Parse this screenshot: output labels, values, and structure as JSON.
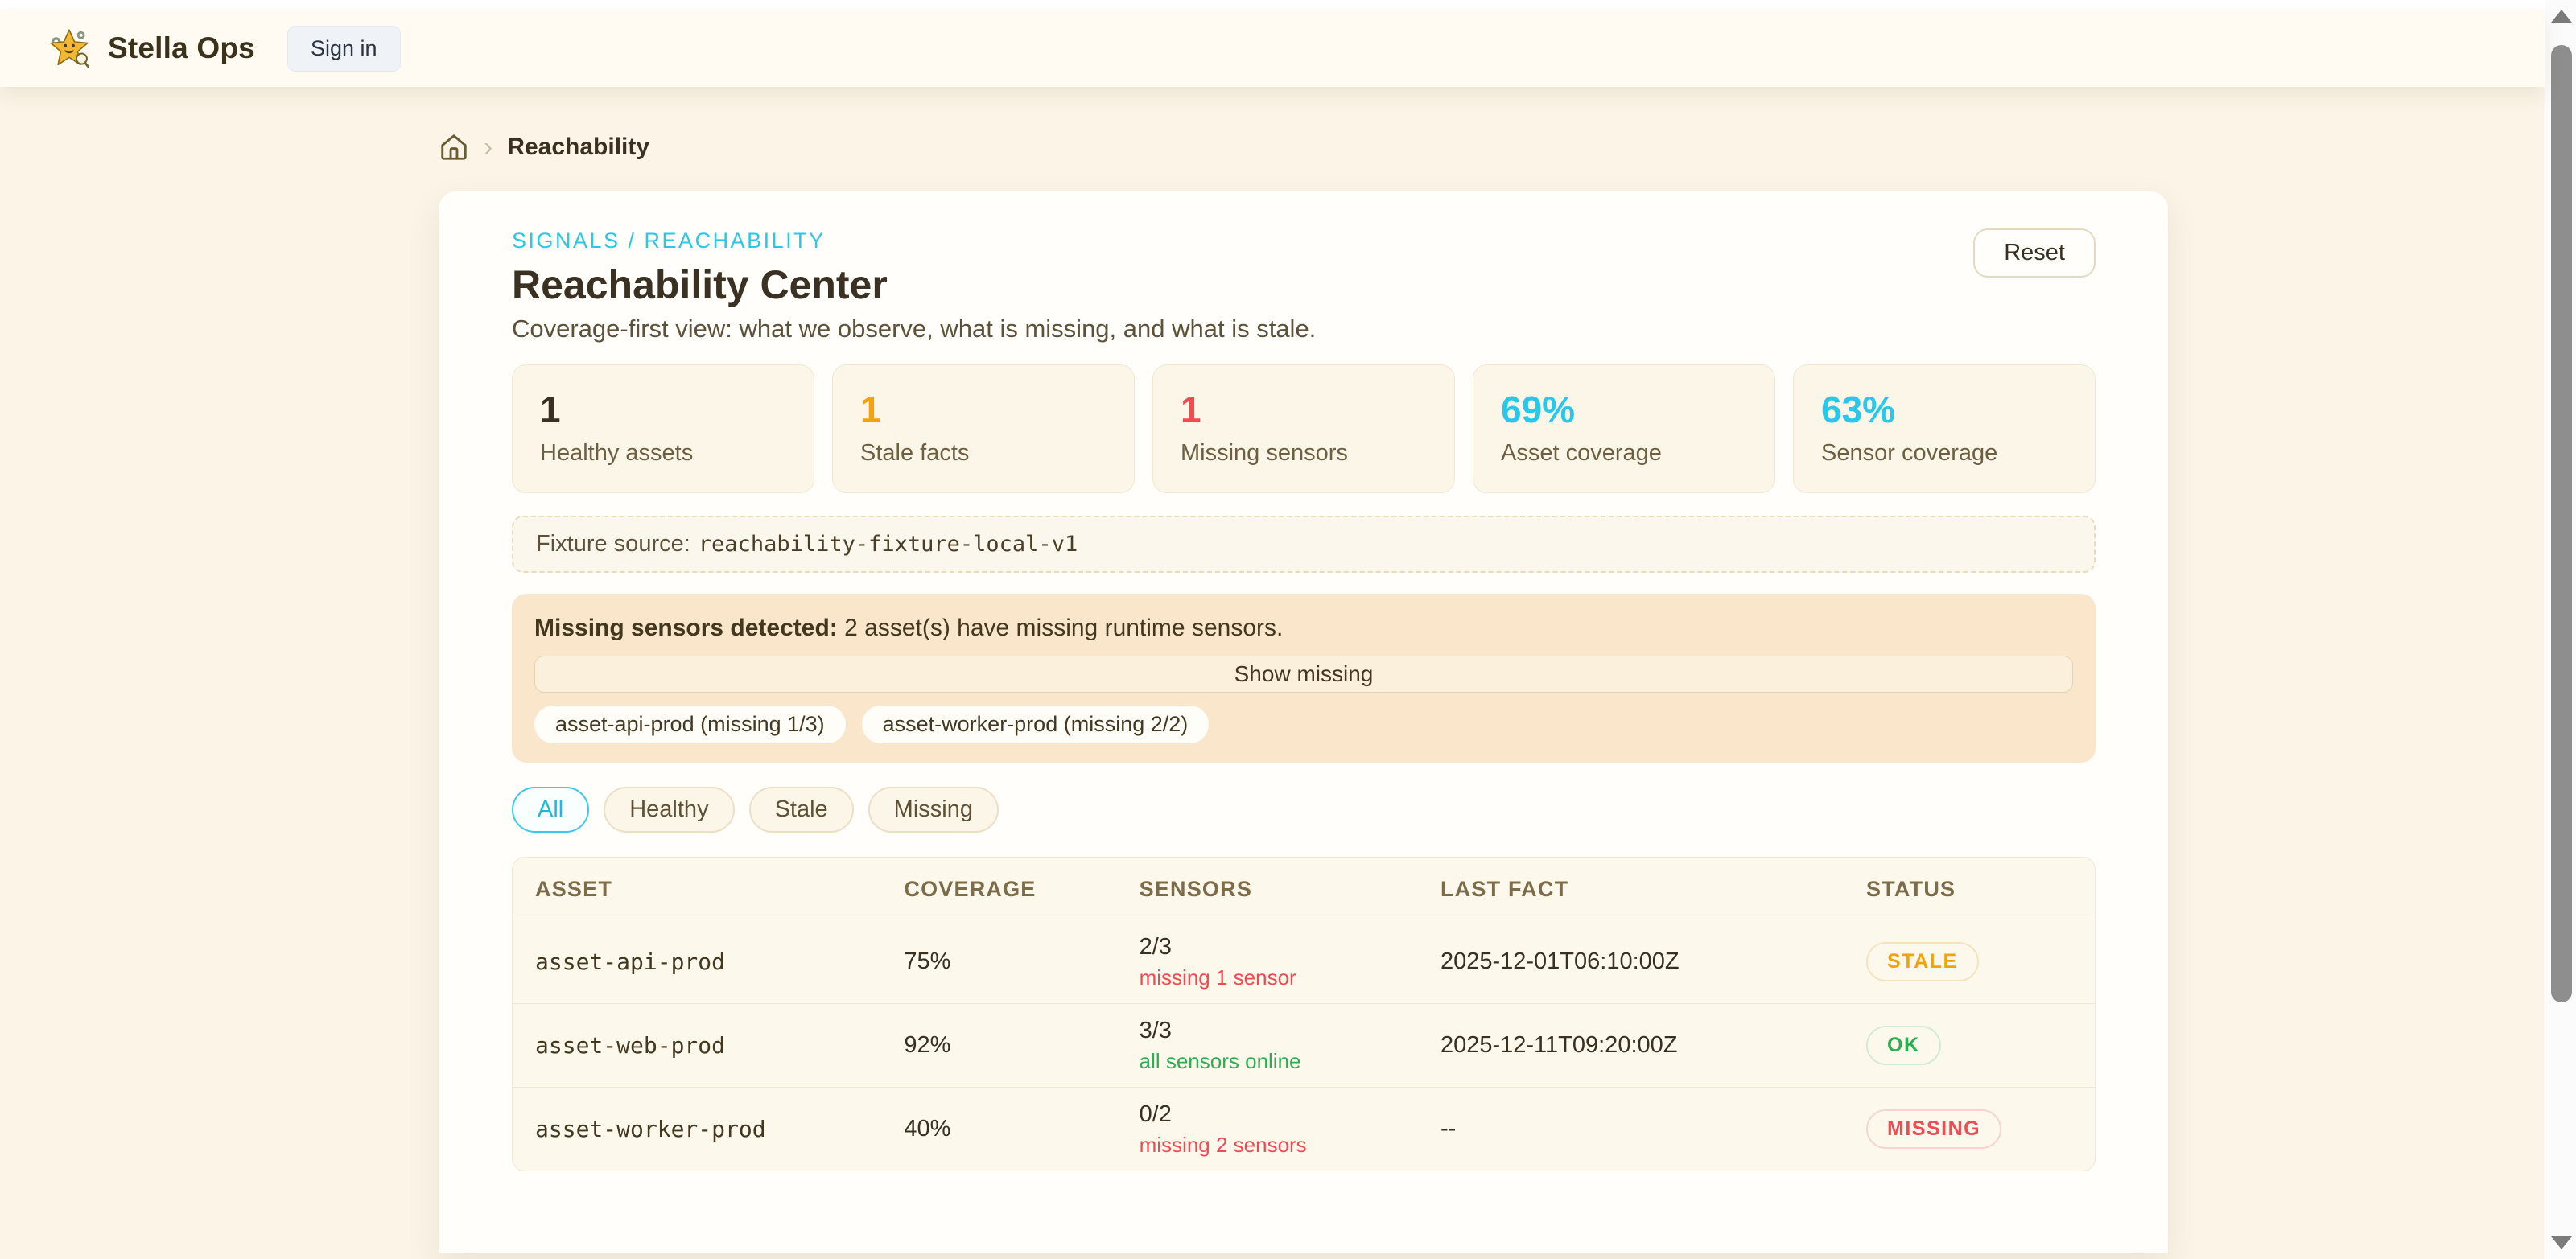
{
  "header": {
    "brand": "Stella Ops",
    "sign_in_label": "Sign in"
  },
  "breadcrumb": {
    "current": "Reachability"
  },
  "page": {
    "eyebrow": "SIGNALS / REACHABILITY",
    "title": "Reachability Center",
    "subtitle": "Coverage-first view: what we observe, what is missing, and what is stale.",
    "reset_label": "Reset"
  },
  "colors": {
    "accent_cyan": "#29c8e8",
    "amber": "#f2a30c",
    "red": "#ef4b52",
    "green": "#2eae52",
    "dark_text": "#3a3021"
  },
  "stats": [
    {
      "value": "1",
      "label": "Healthy assets",
      "color": "#3a3021"
    },
    {
      "value": "1",
      "label": "Stale facts",
      "color": "#f2a30c"
    },
    {
      "value": "1",
      "label": "Missing sensors",
      "color": "#ef4b52"
    },
    {
      "value": "69%",
      "label": "Asset coverage",
      "color": "#29c8e8"
    },
    {
      "value": "63%",
      "label": "Sensor coverage",
      "color": "#29c8e8"
    }
  ],
  "fixture": {
    "label": "Fixture source:",
    "value": "reachability-fixture-local-v1"
  },
  "alert": {
    "title": "Missing sensors detected:",
    "message": "2 asset(s) have missing runtime sensors.",
    "button_label": "Show missing",
    "chips": [
      "asset-api-prod (missing 1/3)",
      "asset-worker-prod (missing 2/2)"
    ]
  },
  "filters": [
    {
      "label": "All",
      "active": true
    },
    {
      "label": "Healthy",
      "active": false
    },
    {
      "label": "Stale",
      "active": false
    },
    {
      "label": "Missing",
      "active": false
    }
  ],
  "table": {
    "columns": [
      "ASSET",
      "COVERAGE",
      "SENSORS",
      "LAST FACT",
      "STATUS"
    ],
    "rows": [
      {
        "asset": "asset-api-prod",
        "coverage": "75%",
        "sensors": "2/3",
        "sensors_note": "missing 1 sensor",
        "note_type": "bad",
        "last_fact": "2025-12-01T06:10:00Z",
        "status": "STALE",
        "status_type": "stale"
      },
      {
        "asset": "asset-web-prod",
        "coverage": "92%",
        "sensors": "3/3",
        "sensors_note": "all sensors online",
        "note_type": "good",
        "last_fact": "2025-12-11T09:20:00Z",
        "status": "OK",
        "status_type": "ok"
      },
      {
        "asset": "asset-worker-prod",
        "coverage": "40%",
        "sensors": "0/2",
        "sensors_note": "missing 2 sensors",
        "note_type": "bad",
        "last_fact": "--",
        "status": "MISSING",
        "status_type": "missing"
      }
    ]
  }
}
